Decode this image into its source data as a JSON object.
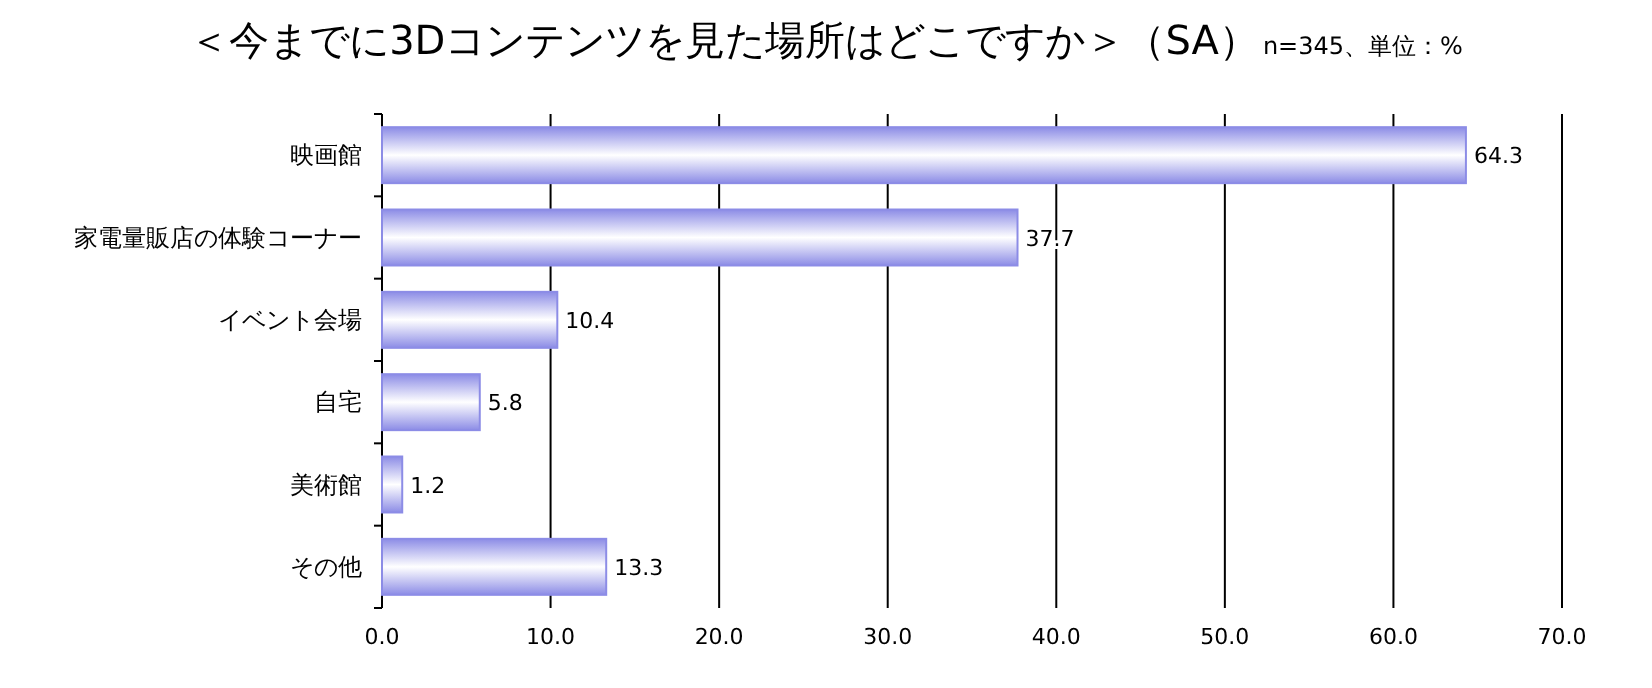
{
  "chart_data": {
    "type": "bar",
    "orientation": "horizontal",
    "title": "＜今までに3Dコンテンツを見た場所はどこですか＞（SA）",
    "subtitle": "n=345、単位：%",
    "categories": [
      "映画館",
      "家電量販店の体験コーナー",
      "イベント会場",
      "自宅",
      "美術館",
      "その他"
    ],
    "values": [
      64.3,
      37.7,
      10.4,
      5.8,
      1.2,
      13.3
    ],
    "color": "#8c8ce6",
    "xlim": [
      0,
      70
    ],
    "xticks": [
      {
        "value": 0,
        "label": "0.0"
      },
      {
        "value": 10,
        "label": "10.0"
      },
      {
        "value": 20,
        "label": "20.0"
      },
      {
        "value": 30,
        "label": "30.0"
      },
      {
        "value": 40,
        "label": "40.0"
      },
      {
        "value": 50,
        "label": "50.0"
      },
      {
        "value": 60,
        "label": "60.0"
      },
      {
        "value": 70,
        "label": "70.0"
      }
    ],
    "grid": "x",
    "data_labels": true
  }
}
